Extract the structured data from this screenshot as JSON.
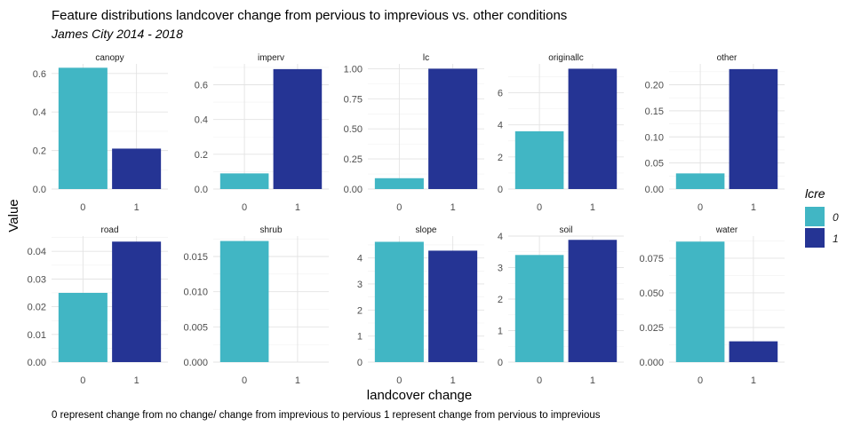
{
  "chart_data": {
    "type": "bar",
    "title": "Feature distributions landcover change from pervious to imprevious vs. other conditions",
    "subtitle": "James City 2014 - 2018",
    "xlabel": "landcover change",
    "ylabel": "Value",
    "caption": "0 represent change from no change/ change from imprevious to pervious 1 represent change from pervious to imprevious",
    "legend": {
      "title": "lcre",
      "position": "right",
      "entries": [
        {
          "label": "0",
          "color": "#41B6C4"
        },
        {
          "label": "1",
          "color": "#253494"
        }
      ]
    },
    "categories": [
      "0",
      "1"
    ],
    "panels": [
      {
        "name": "canopy",
        "values": [
          0.63,
          0.21
        ],
        "ylim": [
          0,
          0.65
        ],
        "ticks": [
          "0.0",
          "0.2",
          "0.4",
          "0.6"
        ]
      },
      {
        "name": "imperv",
        "values": [
          0.09,
          0.69
        ],
        "ylim": [
          0,
          0.72
        ],
        "ticks": [
          "0.0",
          "0.2",
          "0.4",
          "0.6"
        ]
      },
      {
        "name": "lc",
        "values": [
          0.09,
          1.0
        ],
        "ylim": [
          0,
          1.04
        ],
        "ticks": [
          "0.00",
          "0.25",
          "0.50",
          "0.75",
          "1.00"
        ]
      },
      {
        "name": "originallc",
        "values": [
          3.6,
          7.5
        ],
        "ylim": [
          0,
          7.8
        ],
        "ticks": [
          "0",
          "2",
          "4",
          "6"
        ]
      },
      {
        "name": "other",
        "values": [
          0.03,
          0.23
        ],
        "ylim": [
          0,
          0.24
        ],
        "ticks": [
          "0.00",
          "0.05",
          "0.10",
          "0.15",
          "0.20"
        ]
      },
      {
        "name": "road",
        "values": [
          0.025,
          0.0435
        ],
        "ylim": [
          0,
          0.0455
        ],
        "ticks": [
          "0.00",
          "0.01",
          "0.02",
          "0.03",
          "0.04"
        ]
      },
      {
        "name": "shrub",
        "values": [
          0.0172,
          0.0
        ],
        "ylim": [
          0,
          0.0179
        ],
        "ticks": [
          "0.000",
          "0.005",
          "0.010",
          "0.015"
        ]
      },
      {
        "name": "slope",
        "values": [
          4.62,
          4.28
        ],
        "ylim": [
          0,
          4.84
        ],
        "ticks": [
          "0",
          "1",
          "2",
          "3",
          "4"
        ]
      },
      {
        "name": "soil",
        "values": [
          3.4,
          3.88
        ],
        "ylim": [
          0,
          4.0
        ],
        "ticks": [
          "0",
          "1",
          "2",
          "3",
          "4"
        ]
      },
      {
        "name": "water",
        "values": [
          0.087,
          0.015
        ],
        "ylim": [
          0,
          0.091
        ],
        "ticks": [
          "0.000",
          "0.025",
          "0.050",
          "0.075"
        ]
      }
    ]
  }
}
